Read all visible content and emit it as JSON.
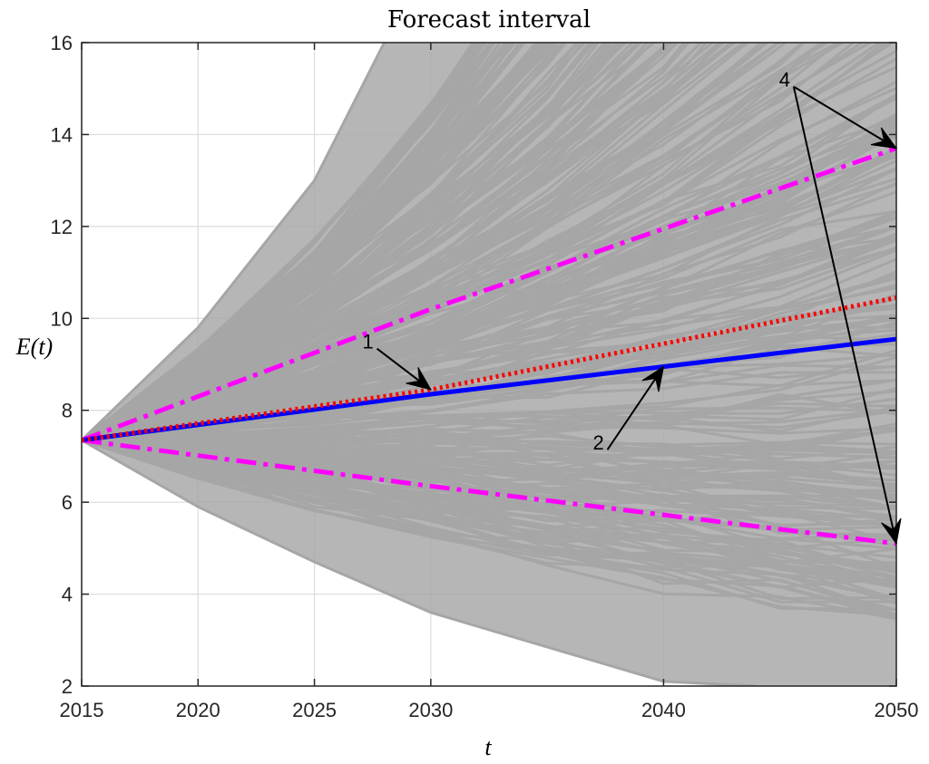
{
  "chart_data": {
    "type": "line",
    "title": "Forecast interval",
    "xlabel": "t",
    "ylabel": "E(t)",
    "xlim": [
      2015,
      2050
    ],
    "ylim": [
      2,
      16
    ],
    "x_ticks": [
      2015,
      2020,
      2025,
      2030,
      2040,
      2050
    ],
    "y_ticks": [
      2,
      4,
      6,
      8,
      10,
      12,
      14,
      16
    ],
    "grid": true,
    "start_point": {
      "x": 2015,
      "y": 7.35
    },
    "series": [
      {
        "key": "red",
        "color": "#ff0000",
        "style": "dotted",
        "x": [
          2015,
          2030,
          2050
        ],
        "y": [
          7.35,
          8.45,
          10.45
        ]
      },
      {
        "key": "blue",
        "color": "#0000ff",
        "style": "solid",
        "x": [
          2015,
          2030,
          2050
        ],
        "y": [
          7.35,
          8.35,
          9.55
        ]
      },
      {
        "key": "upper",
        "color": "#ff00ff",
        "style": "dashdot",
        "x": [
          2015,
          2030,
          2050
        ],
        "y": [
          7.35,
          10.2,
          13.7
        ]
      },
      {
        "key": "lower",
        "color": "#ff00ff",
        "style": "dashdot",
        "x": [
          2015,
          2030,
          2050
        ],
        "y": [
          7.35,
          6.35,
          5.1
        ]
      }
    ],
    "simulated_paths": {
      "color": "#a6a6a6",
      "upper_envelope": {
        "x": [
          2015,
          2020,
          2025,
          2028
        ],
        "y": [
          7.35,
          9.8,
          13.0,
          16
        ]
      },
      "lower_envelope": {
        "x": [
          2015,
          2020,
          2025,
          2030,
          2040,
          2044
        ],
        "y": [
          7.35,
          5.9,
          4.7,
          3.6,
          2.1,
          2
        ]
      }
    },
    "annotations": [
      {
        "label": "1",
        "text_at": [
          2027.3,
          9.5
        ],
        "arrow_to": [
          2030,
          8.45
        ]
      },
      {
        "label": "2",
        "text_at": [
          2037.2,
          7.3
        ],
        "arrow_to": [
          2040,
          8.95
        ]
      },
      {
        "label": "4",
        "text_at": [
          2045.2,
          15.2
        ],
        "arrow_to": [
          2050,
          13.7
        ]
      },
      {
        "label": "4",
        "text_at": [
          2045.2,
          15.2
        ],
        "arrow_to": [
          2050,
          5.1
        ]
      }
    ]
  }
}
